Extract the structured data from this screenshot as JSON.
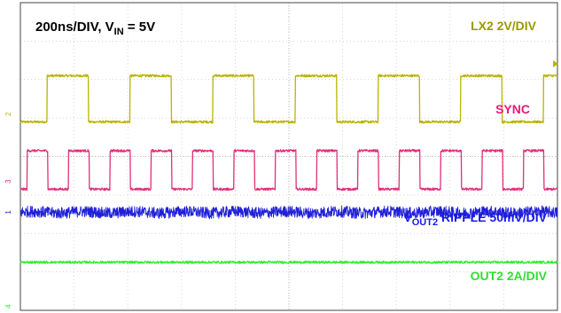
{
  "chart_data": {
    "type": "line",
    "title": "200ns/DIV, V_IN = 5V",
    "timebase": {
      "value": 200,
      "unit": "ns/DIV"
    },
    "vin": "5V",
    "grid": true,
    "divisions": {
      "x": 10,
      "y": 8
    },
    "x_range_ns": [
      0,
      2000
    ],
    "series": [
      {
        "name": "LX2 2V/DIV",
        "label_color": "#9a9a00",
        "color": "#b8b400",
        "channel_marker": "2",
        "scale": "2V/DIV",
        "waveform": "square",
        "period_ns": 308,
        "duty_high": 0.5,
        "low_level_div": 4.9,
        "high_level_div": 6.1,
        "first_rising_ns": 100
      },
      {
        "name": "SYNC",
        "label_color": "#e8197a",
        "color": "#e0307a",
        "channel_marker": "3",
        "scale": "",
        "waveform": "square",
        "period_ns": 154,
        "duty_high": 0.5,
        "low_level_div": 3.15,
        "high_level_div": 4.15,
        "first_rising_ns": 25
      },
      {
        "name": "V_OUT2 RIPPLE 50mV/DIV",
        "label_color": "#1a1ae6",
        "color": "#2020d8",
        "channel_marker": "1",
        "scale": "50mV/DIV",
        "waveform": "noise",
        "level_div": 2.55,
        "noise_pp_div": 0.3
      },
      {
        "name": "OUT2 2A/DIV",
        "label_color": "#33dd33",
        "color": "#33ee33",
        "channel_marker": "4",
        "scale": "2A/DIV",
        "waveform": "flat",
        "level_div": 1.25,
        "noise_pp_div": 0.06
      }
    ]
  },
  "labels": {
    "title_prefix": "200ns/DIV, V",
    "title_sub": "IN",
    "title_suffix": " = 5V",
    "lx2": "LX2 2V/DIV",
    "sync": "SYNC",
    "vout_prefix": "V",
    "vout_sub": "OUT2",
    "vout_suffix": " RIPPLE 50mV/DIV",
    "out2": "OUT2 2A/DIV"
  },
  "markers": {
    "ch1": "1",
    "ch2": "2",
    "ch3": "3",
    "ch4": "4"
  }
}
